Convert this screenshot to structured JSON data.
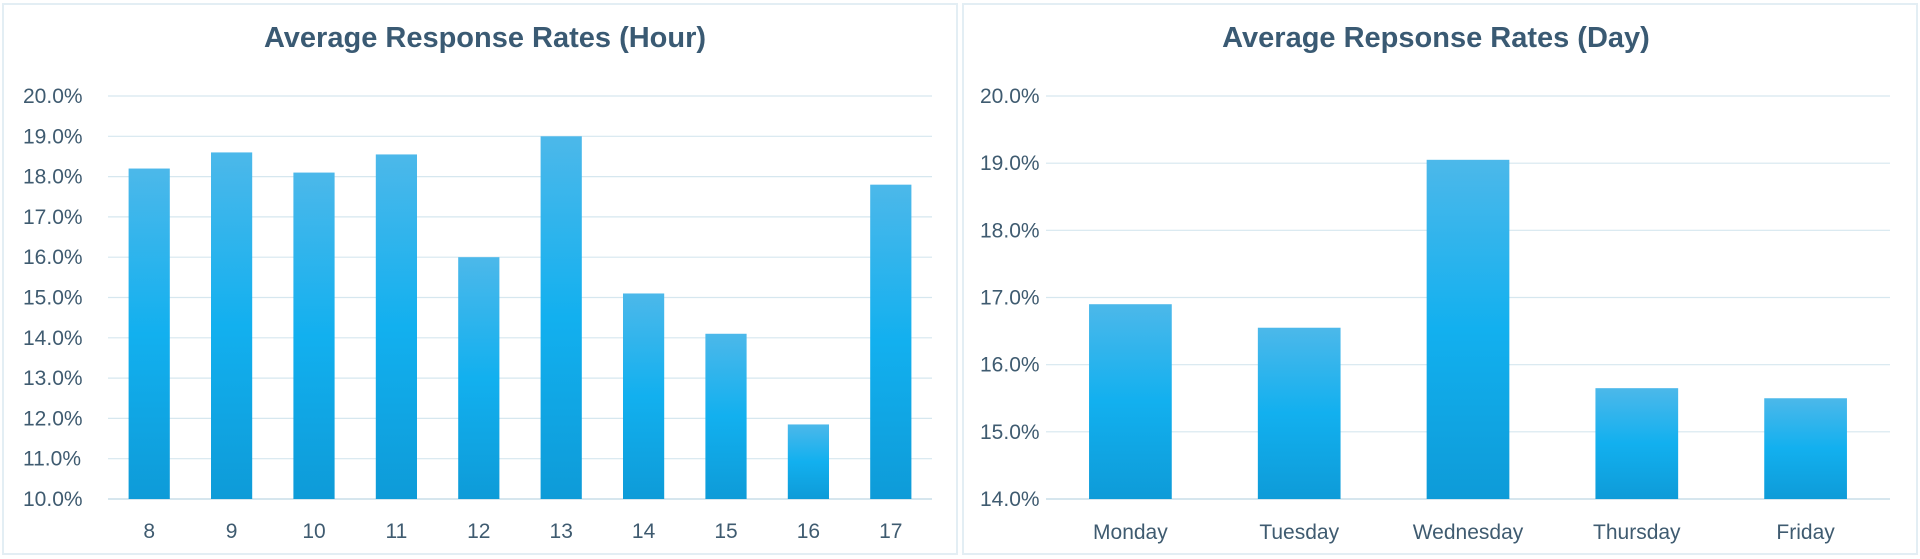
{
  "chart_data": [
    {
      "type": "bar",
      "title": "Average Response Rates (Hour)",
      "xlabel": "",
      "ylabel": "",
      "categories": [
        "8",
        "9",
        "10",
        "11",
        "12",
        "13",
        "14",
        "15",
        "16",
        "17"
      ],
      "values": [
        18.2,
        18.6,
        18.1,
        18.55,
        16.0,
        19.0,
        15.1,
        14.1,
        11.85,
        17.8
      ],
      "ylim": [
        10.0,
        20.0
      ],
      "yticks": [
        "10.0%",
        "11.0%",
        "12.0%",
        "13.0%",
        "14.0%",
        "15.0%",
        "16.0%",
        "17.0%",
        "18.0%",
        "19.0%",
        "20.0%"
      ],
      "grid": true,
      "legend": "none",
      "colors": {
        "bar_top": "#4cb8ea",
        "bar_mid": "#12b0ef",
        "bar_bottom": "#0e9bd8",
        "title": "#3a5a73",
        "tick": "#3f5b70",
        "grid": "#d6e7ef",
        "axis": "#c9dde8"
      }
    },
    {
      "type": "bar",
      "title": "Average Repsonse Rates (Day)",
      "xlabel": "",
      "ylabel": "",
      "categories": [
        "Monday",
        "Tuesday",
        "Wednesday",
        "Thursday",
        "Friday"
      ],
      "values": [
        16.9,
        16.55,
        19.05,
        15.65,
        15.5
      ],
      "ylim": [
        14.0,
        20.0
      ],
      "yticks": [
        "14.0%",
        "15.0%",
        "16.0%",
        "17.0%",
        "18.0%",
        "19.0%",
        "20.0%"
      ],
      "grid": true,
      "legend": "none",
      "colors": {
        "bar_top": "#4cb8ea",
        "bar_mid": "#12b0ef",
        "bar_bottom": "#0e9bd8",
        "title": "#3a5a73",
        "tick": "#3f5b70",
        "grid": "#d6e7ef",
        "axis": "#c9dde8"
      }
    }
  ]
}
